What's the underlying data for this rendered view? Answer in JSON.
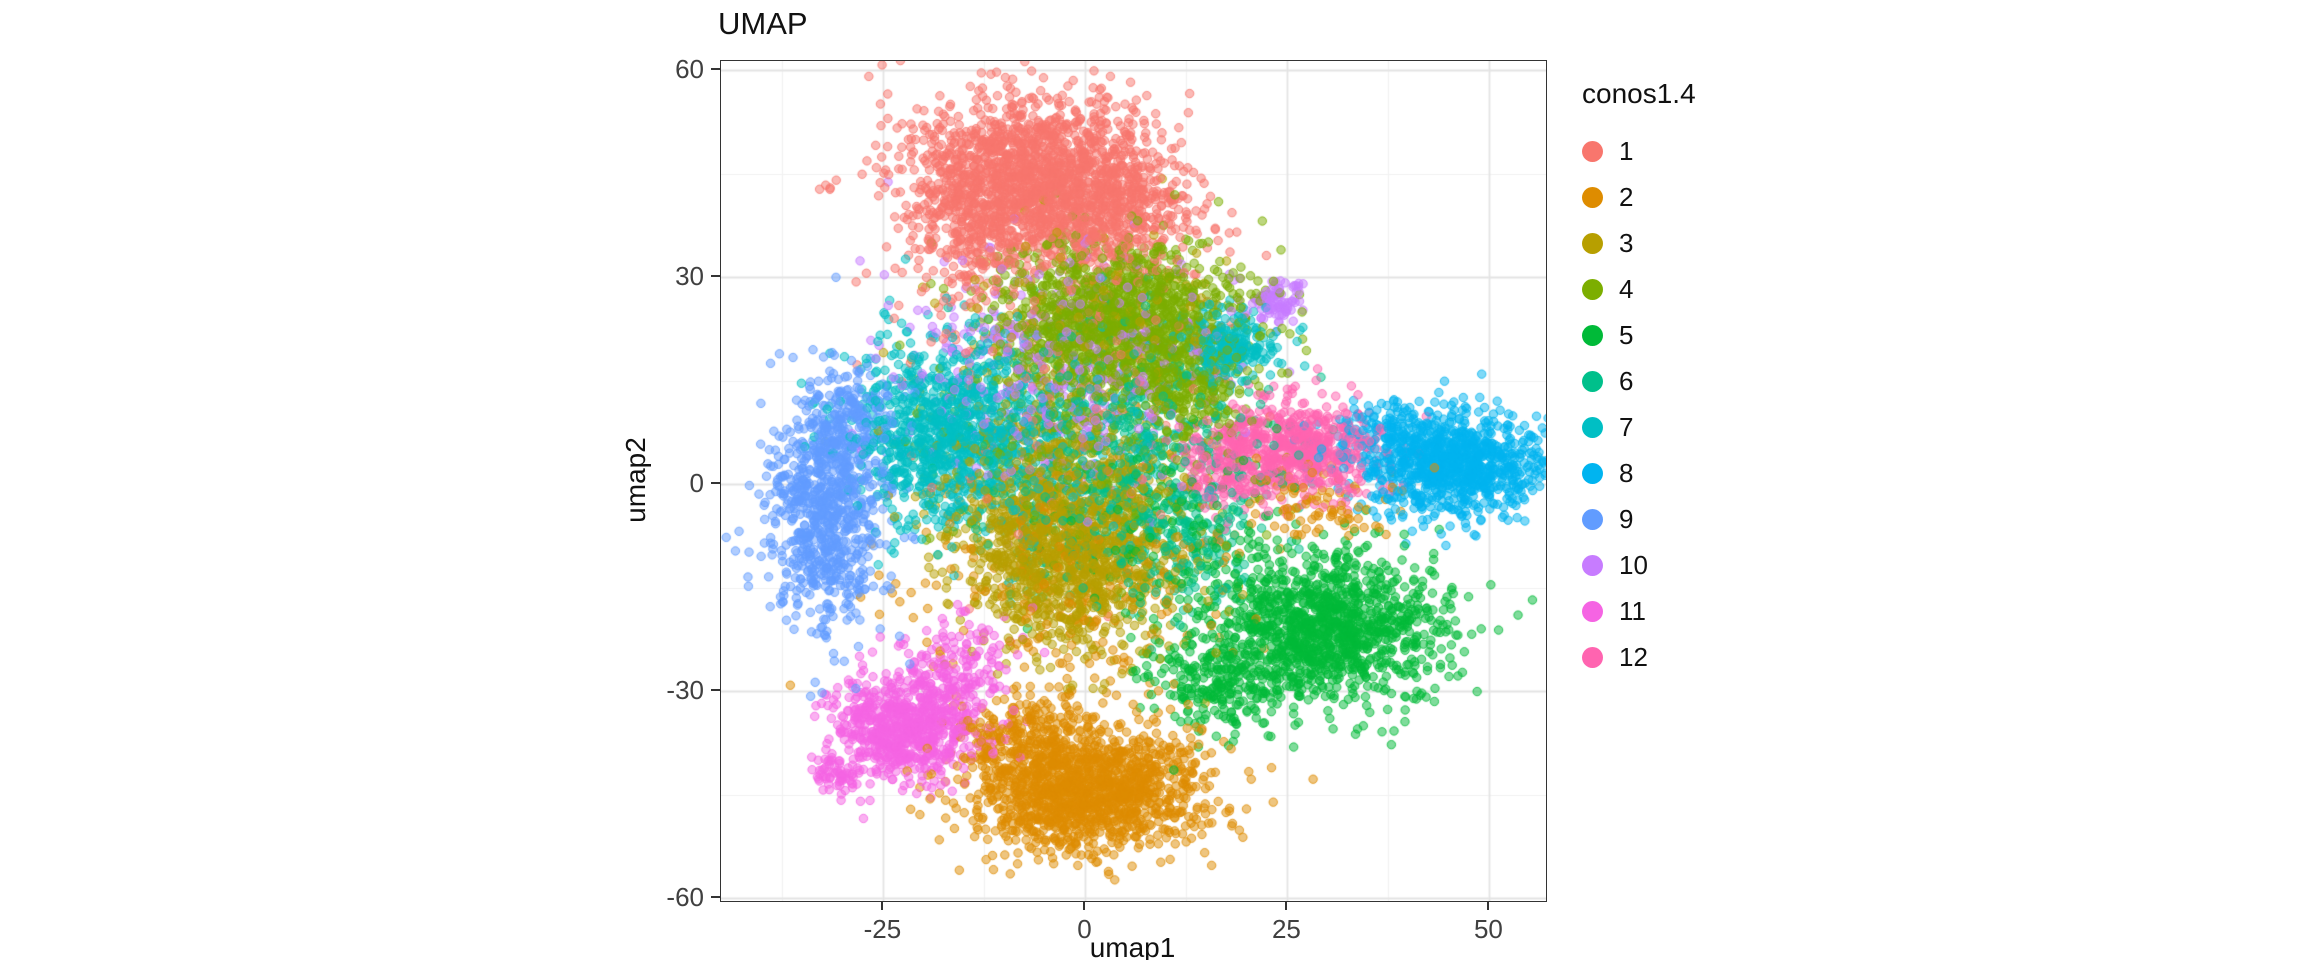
{
  "chart_data": {
    "type": "scatter",
    "title": "UMAP",
    "xlabel": "umap1",
    "ylabel": "umap2",
    "legend_title": "conos1.4",
    "xlim": [
      -45.1,
      57.0
    ],
    "ylim": [
      -60.4,
      61.3
    ],
    "x_ticks": [
      -25,
      0,
      25,
      50
    ],
    "y_ticks": [
      -60,
      -30,
      0,
      30,
      60
    ],
    "grid": true,
    "legend_position": "right",
    "point_radius": 4.2,
    "point_alpha": 0.5,
    "clusters": [
      {
        "label": "1",
        "color": "#F8766D",
        "blobs": [
          {
            "cx": -6,
            "cy": 45,
            "sx": 8.0,
            "sy": 5.5,
            "n": 1500
          },
          {
            "cx": 2,
            "cy": 38,
            "sx": 6.0,
            "sy": 4.0,
            "n": 400
          },
          {
            "cx": -14,
            "cy": 36,
            "sx": 4.0,
            "sy": 5.0,
            "n": 250
          },
          {
            "cx": -2,
            "cy": 15,
            "sx": 11.0,
            "sy": 11.0,
            "n": 160
          }
        ]
      },
      {
        "label": "2",
        "color": "#DE8C00",
        "blobs": [
          {
            "cx": 0,
            "cy": -44,
            "sx": 7.0,
            "sy": 4.5,
            "n": 1400
          },
          {
            "cx": -8,
            "cy": -36,
            "sx": 4.0,
            "sy": 3.0,
            "n": 200
          },
          {
            "cx": -2,
            "cy": -15,
            "sx": 11.0,
            "sy": 9.0,
            "n": 260
          },
          {
            "cx": 28,
            "cy": -3,
            "sx": 5.0,
            "sy": 3.0,
            "n": 90
          }
        ]
      },
      {
        "label": "3",
        "color": "#B79F00",
        "blobs": [
          {
            "cx": -2,
            "cy": -10,
            "sx": 6.5,
            "sy": 7.0,
            "n": 1200
          },
          {
            "cx": -5,
            "cy": 2,
            "sx": 8.0,
            "sy": 6.0,
            "n": 300
          },
          {
            "cx": 0,
            "cy": 25,
            "sx": 9.0,
            "sy": 7.0,
            "n": 150
          }
        ]
      },
      {
        "label": "4",
        "color": "#7CAE00",
        "blobs": [
          {
            "cx": 4,
            "cy": 24,
            "sx": 7.5,
            "sy": 5.5,
            "n": 1300
          },
          {
            "cx": 12,
            "cy": 14,
            "sx": 4.0,
            "sy": 4.0,
            "n": 250
          },
          {
            "cx": 0,
            "cy": 5,
            "sx": 10.0,
            "sy": 8.0,
            "n": 220
          }
        ]
      },
      {
        "label": "5",
        "color": "#00BA38",
        "blobs": [
          {
            "cx": 29,
            "cy": -21,
            "sx": 7.5,
            "sy": 5.5,
            "n": 1300
          },
          {
            "cx": 16,
            "cy": -29,
            "sx": 4.0,
            "sy": 3.5,
            "n": 200
          },
          {
            "cx": 10,
            "cy": -5,
            "sx": 8.0,
            "sy": 7.0,
            "n": 150
          }
        ]
      },
      {
        "label": "6",
        "color": "#00C08B",
        "blobs": [
          {
            "cx": 3,
            "cy": 4,
            "sx": 9.0,
            "sy": 9.0,
            "n": 650
          },
          {
            "cx": 12,
            "cy": -8,
            "sx": 5.0,
            "sy": 5.0,
            "n": 150
          }
        ]
      },
      {
        "label": "7",
        "color": "#00BFC4",
        "blobs": [
          {
            "cx": -17,
            "cy": 8,
            "sx": 5.5,
            "sy": 7.0,
            "n": 950
          },
          {
            "cx": 18,
            "cy": 20,
            "sx": 3.0,
            "sy": 2.5,
            "n": 220
          },
          {
            "cx": -2,
            "cy": 5,
            "sx": 9.0,
            "sy": 8.0,
            "n": 180
          }
        ]
      },
      {
        "label": "8",
        "color": "#00B4F0",
        "blobs": [
          {
            "cx": 46,
            "cy": 3,
            "sx": 5.0,
            "sy": 3.8,
            "n": 950
          },
          {
            "cx": 37,
            "cy": 6,
            "sx": 4.0,
            "sy": 3.0,
            "n": 150
          }
        ]
      },
      {
        "label": "9",
        "color": "#619CFF",
        "blobs": [
          {
            "cx": -32,
            "cy": -3,
            "sx": 3.4,
            "sy": 8.5,
            "n": 850
          },
          {
            "cx": -28,
            "cy": 10,
            "sx": 3.0,
            "sy": 4.0,
            "n": 150
          }
        ]
      },
      {
        "label": "10",
        "color": "#C77CFF",
        "blobs": [
          {
            "cx": 23.5,
            "cy": 26,
            "sx": 1.7,
            "sy": 1.7,
            "n": 90
          },
          {
            "cx": -2,
            "cy": 17,
            "sx": 10.0,
            "sy": 8.0,
            "n": 420
          }
        ]
      },
      {
        "label": "11",
        "color": "#F564E3",
        "blobs": [
          {
            "cx": -22,
            "cy": -35,
            "sx": 4.5,
            "sy": 3.8,
            "n": 750
          },
          {
            "cx": -30.5,
            "cy": -42,
            "sx": 1.6,
            "sy": 1.4,
            "n": 60
          },
          {
            "cx": -16,
            "cy": -26,
            "sx": 4.0,
            "sy": 4.0,
            "n": 150
          }
        ]
      },
      {
        "label": "12",
        "color": "#FF64B0",
        "blobs": [
          {
            "cx": 26,
            "cy": 5,
            "sx": 5.5,
            "sy": 3.5,
            "n": 650
          },
          {
            "cx": 18,
            "cy": 2,
            "sx": 3.5,
            "sy": 3.5,
            "n": 150
          }
        ]
      }
    ],
    "style": {
      "panel_border_color": "#333333",
      "grid_major_color": "#e3e3e3",
      "grid_minor_color": "#f1f1f1",
      "tick_color": "#333333",
      "tick_label_color": "#404040"
    }
  }
}
